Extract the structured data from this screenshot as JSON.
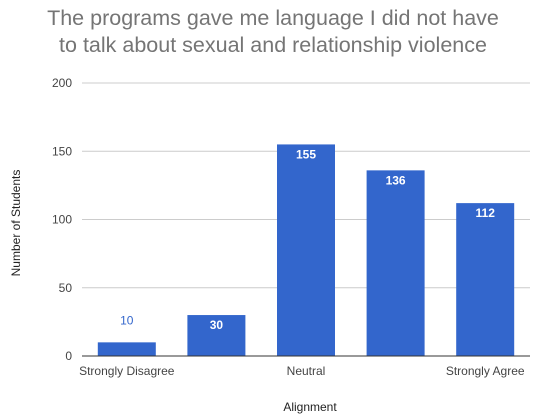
{
  "chart_data": {
    "type": "bar",
    "title_lines": [
      "The programs gave me language I did not have",
      "to talk about sexual and relationship violence"
    ],
    "xlabel": "Alignment",
    "ylabel": "Number of Students",
    "categories": [
      "Strongly Disagree",
      "",
      "Neutral",
      "",
      "Strongly Agree"
    ],
    "values": [
      10,
      30,
      155,
      136,
      112
    ],
    "ylim": [
      0,
      200
    ],
    "yticks": [
      0,
      50,
      100,
      150,
      200
    ],
    "bar_color": "#3366cc",
    "gridlines": true,
    "legend": "none"
  }
}
